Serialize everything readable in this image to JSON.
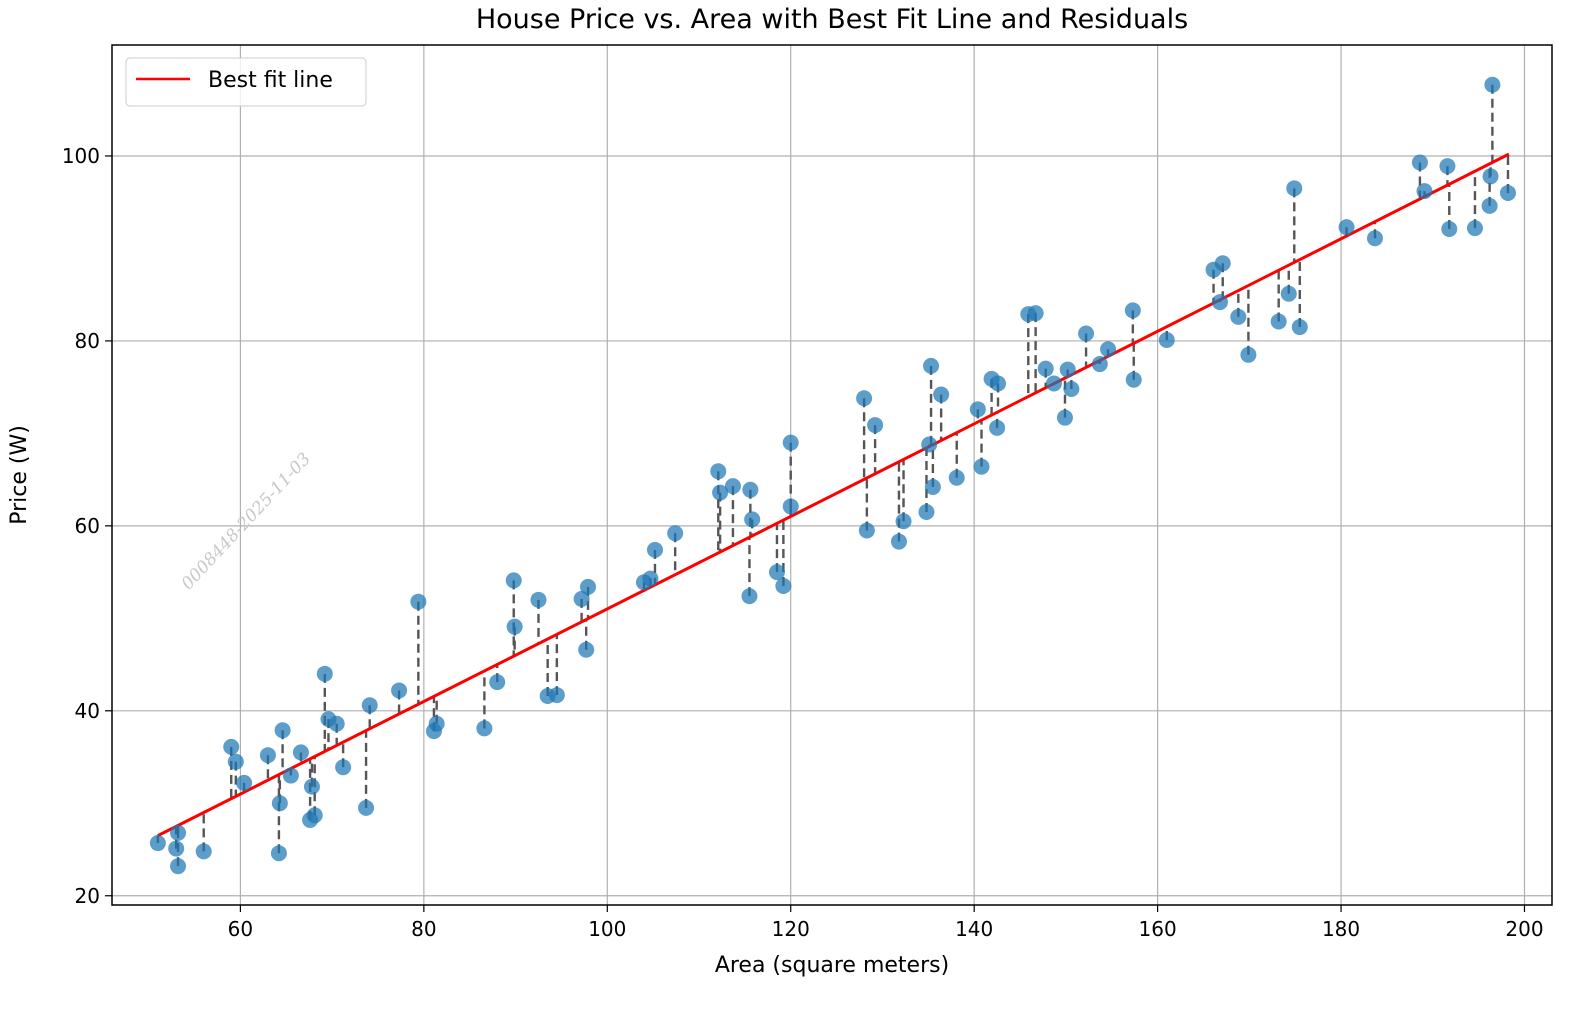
{
  "chart_data": {
    "type": "scatter",
    "title": "House Price vs. Area with Best Fit Line and Residuals",
    "xlabel": "Area (square meters)",
    "ylabel": "Price (W)",
    "xlim": [
      46,
      203
    ],
    "ylim": [
      19,
      112
    ],
    "xticks": [
      60,
      80,
      100,
      120,
      140,
      160,
      180,
      200
    ],
    "yticks": [
      20,
      40,
      60,
      80,
      100
    ],
    "xtick_labels": [
      "60",
      "80",
      "100",
      "120",
      "140",
      "160",
      "180",
      "200"
    ],
    "ytick_labels": [
      "20",
      "40",
      "60",
      "80",
      "100"
    ],
    "grid": true,
    "legend": {
      "position": "top-left",
      "entries": [
        "Best fit line"
      ]
    },
    "fit_line": {
      "name": "Best fit line",
      "color": "#ff0000",
      "x_start": 51.0,
      "y_start": 26.5,
      "x_end": 198.3,
      "y_end": 100.2
    },
    "scatter_color": "#1f77b4",
    "residual_color": "#555555",
    "points": [
      [
        51.0,
        25.7
      ],
      [
        53.0,
        25.1
      ],
      [
        53.2,
        26.8
      ],
      [
        53.2,
        23.2
      ],
      [
        56.0,
        24.8
      ],
      [
        59.0,
        36.1
      ],
      [
        59.5,
        34.5
      ],
      [
        60.4,
        32.2
      ],
      [
        63.0,
        35.2
      ],
      [
        64.2,
        24.6
      ],
      [
        64.3,
        30.0
      ],
      [
        64.6,
        37.9
      ],
      [
        65.5,
        33.0
      ],
      [
        66.6,
        35.5
      ],
      [
        67.8,
        31.8
      ],
      [
        67.6,
        28.2
      ],
      [
        68.1,
        28.7
      ],
      [
        69.2,
        44.0
      ],
      [
        69.6,
        39.1
      ],
      [
        70.5,
        38.6
      ],
      [
        71.2,
        33.9
      ],
      [
        73.7,
        29.5
      ],
      [
        74.1,
        40.6
      ],
      [
        77.3,
        42.2
      ],
      [
        79.4,
        51.8
      ],
      [
        81.1,
        37.8
      ],
      [
        81.4,
        38.6
      ],
      [
        86.6,
        38.1
      ],
      [
        88.0,
        43.1
      ],
      [
        89.8,
        54.1
      ],
      [
        89.9,
        49.1
      ],
      [
        92.5,
        52.0
      ],
      [
        93.5,
        41.6
      ],
      [
        94.5,
        41.7
      ],
      [
        97.2,
        52.1
      ],
      [
        97.7,
        46.6
      ],
      [
        97.9,
        53.4
      ],
      [
        104.0,
        53.9
      ],
      [
        104.7,
        54.3
      ],
      [
        105.2,
        57.4
      ],
      [
        107.4,
        59.2
      ],
      [
        112.1,
        65.9
      ],
      [
        112.3,
        63.6
      ],
      [
        113.7,
        64.3
      ],
      [
        115.5,
        52.4
      ],
      [
        115.6,
        63.9
      ],
      [
        115.8,
        60.7
      ],
      [
        118.5,
        55.0
      ],
      [
        119.2,
        53.5
      ],
      [
        120.0,
        69.0
      ],
      [
        120.0,
        62.1
      ],
      [
        128.0,
        73.8
      ],
      [
        128.3,
        59.5
      ],
      [
        129.2,
        70.9
      ],
      [
        131.8,
        58.3
      ],
      [
        132.3,
        60.5
      ],
      [
        134.8,
        61.5
      ],
      [
        135.1,
        68.8
      ],
      [
        135.3,
        77.3
      ],
      [
        135.5,
        64.2
      ],
      [
        136.4,
        74.2
      ],
      [
        138.1,
        65.2
      ],
      [
        140.4,
        72.6
      ],
      [
        140.8,
        66.4
      ],
      [
        141.9,
        75.9
      ],
      [
        142.5,
        70.6
      ],
      [
        142.6,
        75.4
      ],
      [
        145.9,
        82.9
      ],
      [
        146.7,
        83.0
      ],
      [
        147.8,
        77.0
      ],
      [
        148.7,
        75.4
      ],
      [
        149.9,
        71.7
      ],
      [
        150.2,
        76.9
      ],
      [
        150.6,
        74.8
      ],
      [
        152.2,
        80.8
      ],
      [
        153.7,
        77.5
      ],
      [
        154.6,
        79.1
      ],
      [
        157.3,
        83.3
      ],
      [
        157.4,
        75.8
      ],
      [
        161.0,
        80.1
      ],
      [
        166.1,
        87.7
      ],
      [
        166.8,
        84.2
      ],
      [
        167.1,
        88.4
      ],
      [
        168.8,
        82.6
      ],
      [
        169.9,
        78.5
      ],
      [
        173.2,
        82.1
      ],
      [
        174.3,
        85.1
      ],
      [
        174.9,
        96.5
      ],
      [
        175.5,
        81.5
      ],
      [
        180.6,
        92.3
      ],
      [
        183.7,
        91.1
      ],
      [
        188.6,
        99.3
      ],
      [
        189.1,
        96.2
      ],
      [
        191.6,
        98.9
      ],
      [
        191.8,
        92.1
      ],
      [
        194.6,
        92.2
      ],
      [
        196.2,
        94.6
      ],
      [
        196.3,
        97.8
      ],
      [
        196.5,
        107.7
      ],
      [
        198.2,
        96.0
      ]
    ]
  },
  "watermark": "0008448-2025-11-03"
}
